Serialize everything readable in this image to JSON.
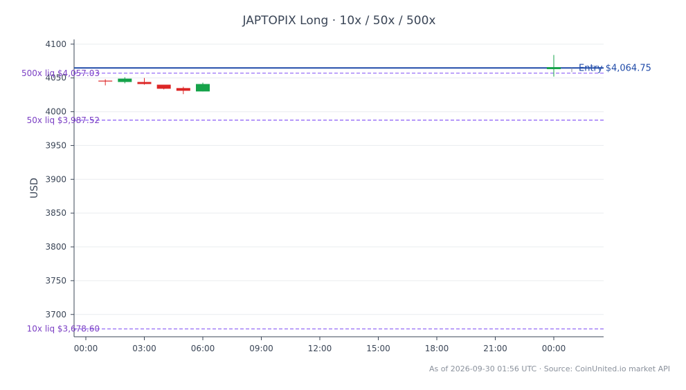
{
  "chart_data": {
    "type": "candlestick",
    "title": "JAPTOPIX Long · 10x / 50x / 500x",
    "ylabel": "USD",
    "xlabel": "",
    "ylim": [
      3667,
      4107
    ],
    "x_ticks": [
      "00:00",
      "03:00",
      "06:00",
      "09:00",
      "12:00",
      "15:00",
      "18:00",
      "21:00",
      "00:00"
    ],
    "y_ticks": [
      4100,
      4050,
      4000,
      3950,
      3900,
      3850,
      3800,
      3750,
      3700
    ],
    "grid": true,
    "candles": [
      {
        "t": 1.0,
        "open": 4046,
        "high": 4048,
        "low": 4039,
        "close": 4045
      },
      {
        "t": 2.0,
        "open": 4044,
        "high": 4051,
        "low": 4042,
        "close": 4049
      },
      {
        "t": 3.0,
        "open": 4044,
        "high": 4050,
        "low": 4040,
        "close": 4041
      },
      {
        "t": 4.0,
        "open": 4040,
        "high": 4040,
        "low": 4033,
        "close": 4034
      },
      {
        "t": 5.0,
        "open": 4035,
        "high": 4037,
        "low": 4026,
        "close": 4031
      },
      {
        "t": 6.0,
        "open": 4030,
        "high": 4043,
        "low": 4030,
        "close": 4041
      },
      {
        "t": 24.0,
        "open": 4063,
        "high": 4084,
        "low": 4052,
        "close": 4066
      }
    ],
    "entry": {
      "value": 4064.75,
      "label": "Entry $4,064.75",
      "color": "#1f4aa8"
    },
    "liquidation_levels": [
      {
        "value": 4057.03,
        "label": "500x liq $4,057.03"
      },
      {
        "value": 3987.52,
        "label": "50x liq $3,987.52"
      },
      {
        "value": 3678.6,
        "label": "10x liq $3,678.60"
      }
    ],
    "colors": {
      "up": "#16a34a",
      "down": "#dc2626",
      "liq": "#8b5cf6",
      "entry": "#1f4aa8"
    }
  },
  "footer": {
    "text": "As of 2026-09-30 01:56 UTC · Source: CoinUnited.io market API"
  }
}
